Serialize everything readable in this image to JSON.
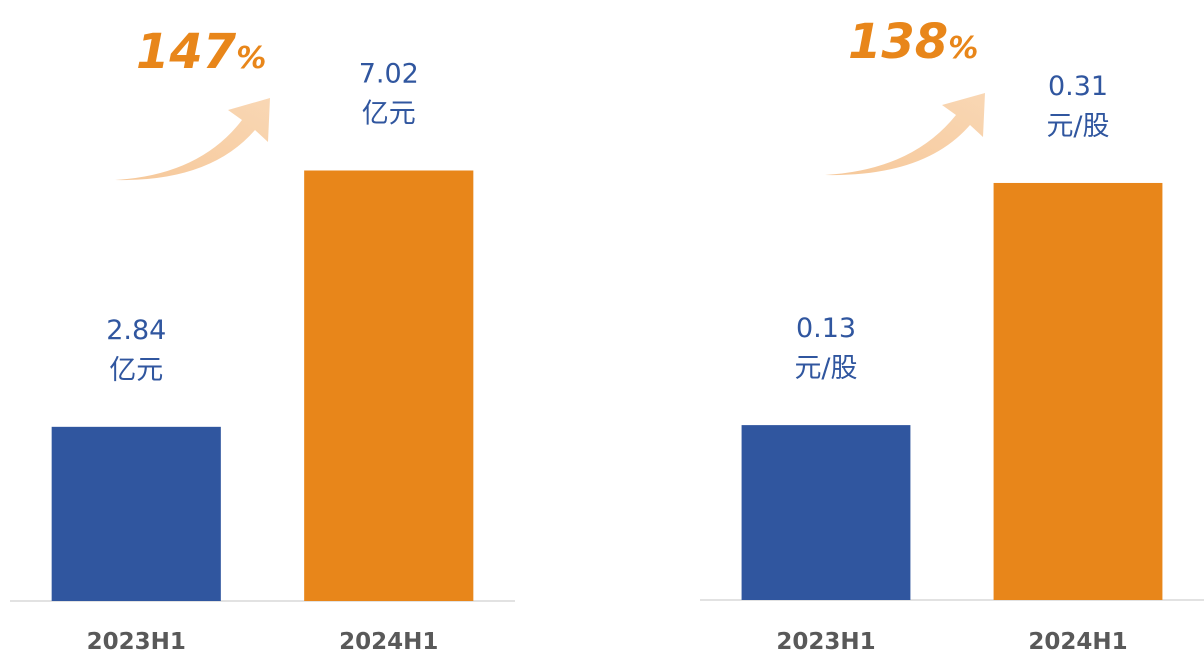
{
  "chart_data": [
    {
      "type": "bar",
      "categories": [
        "2023H1",
        "2024H1"
      ],
      "values": [
        2.84,
        7.02
      ],
      "unit_labels": [
        "亿元",
        "亿元"
      ],
      "colors": [
        "#30569f",
        "#e8861a"
      ],
      "ylim": [
        0,
        9.8
      ],
      "annotation": "147",
      "annotation_unit": "%"
    },
    {
      "type": "bar",
      "categories": [
        "2023H1",
        "2024H1"
      ],
      "values": [
        0.13,
        0.31
      ],
      "unit_labels": [
        "元/股",
        "元/股"
      ],
      "colors": [
        "#30569f",
        "#e8861a"
      ],
      "ylim": [
        0,
        0.446
      ],
      "annotation": "138",
      "annotation_unit": "%"
    }
  ]
}
